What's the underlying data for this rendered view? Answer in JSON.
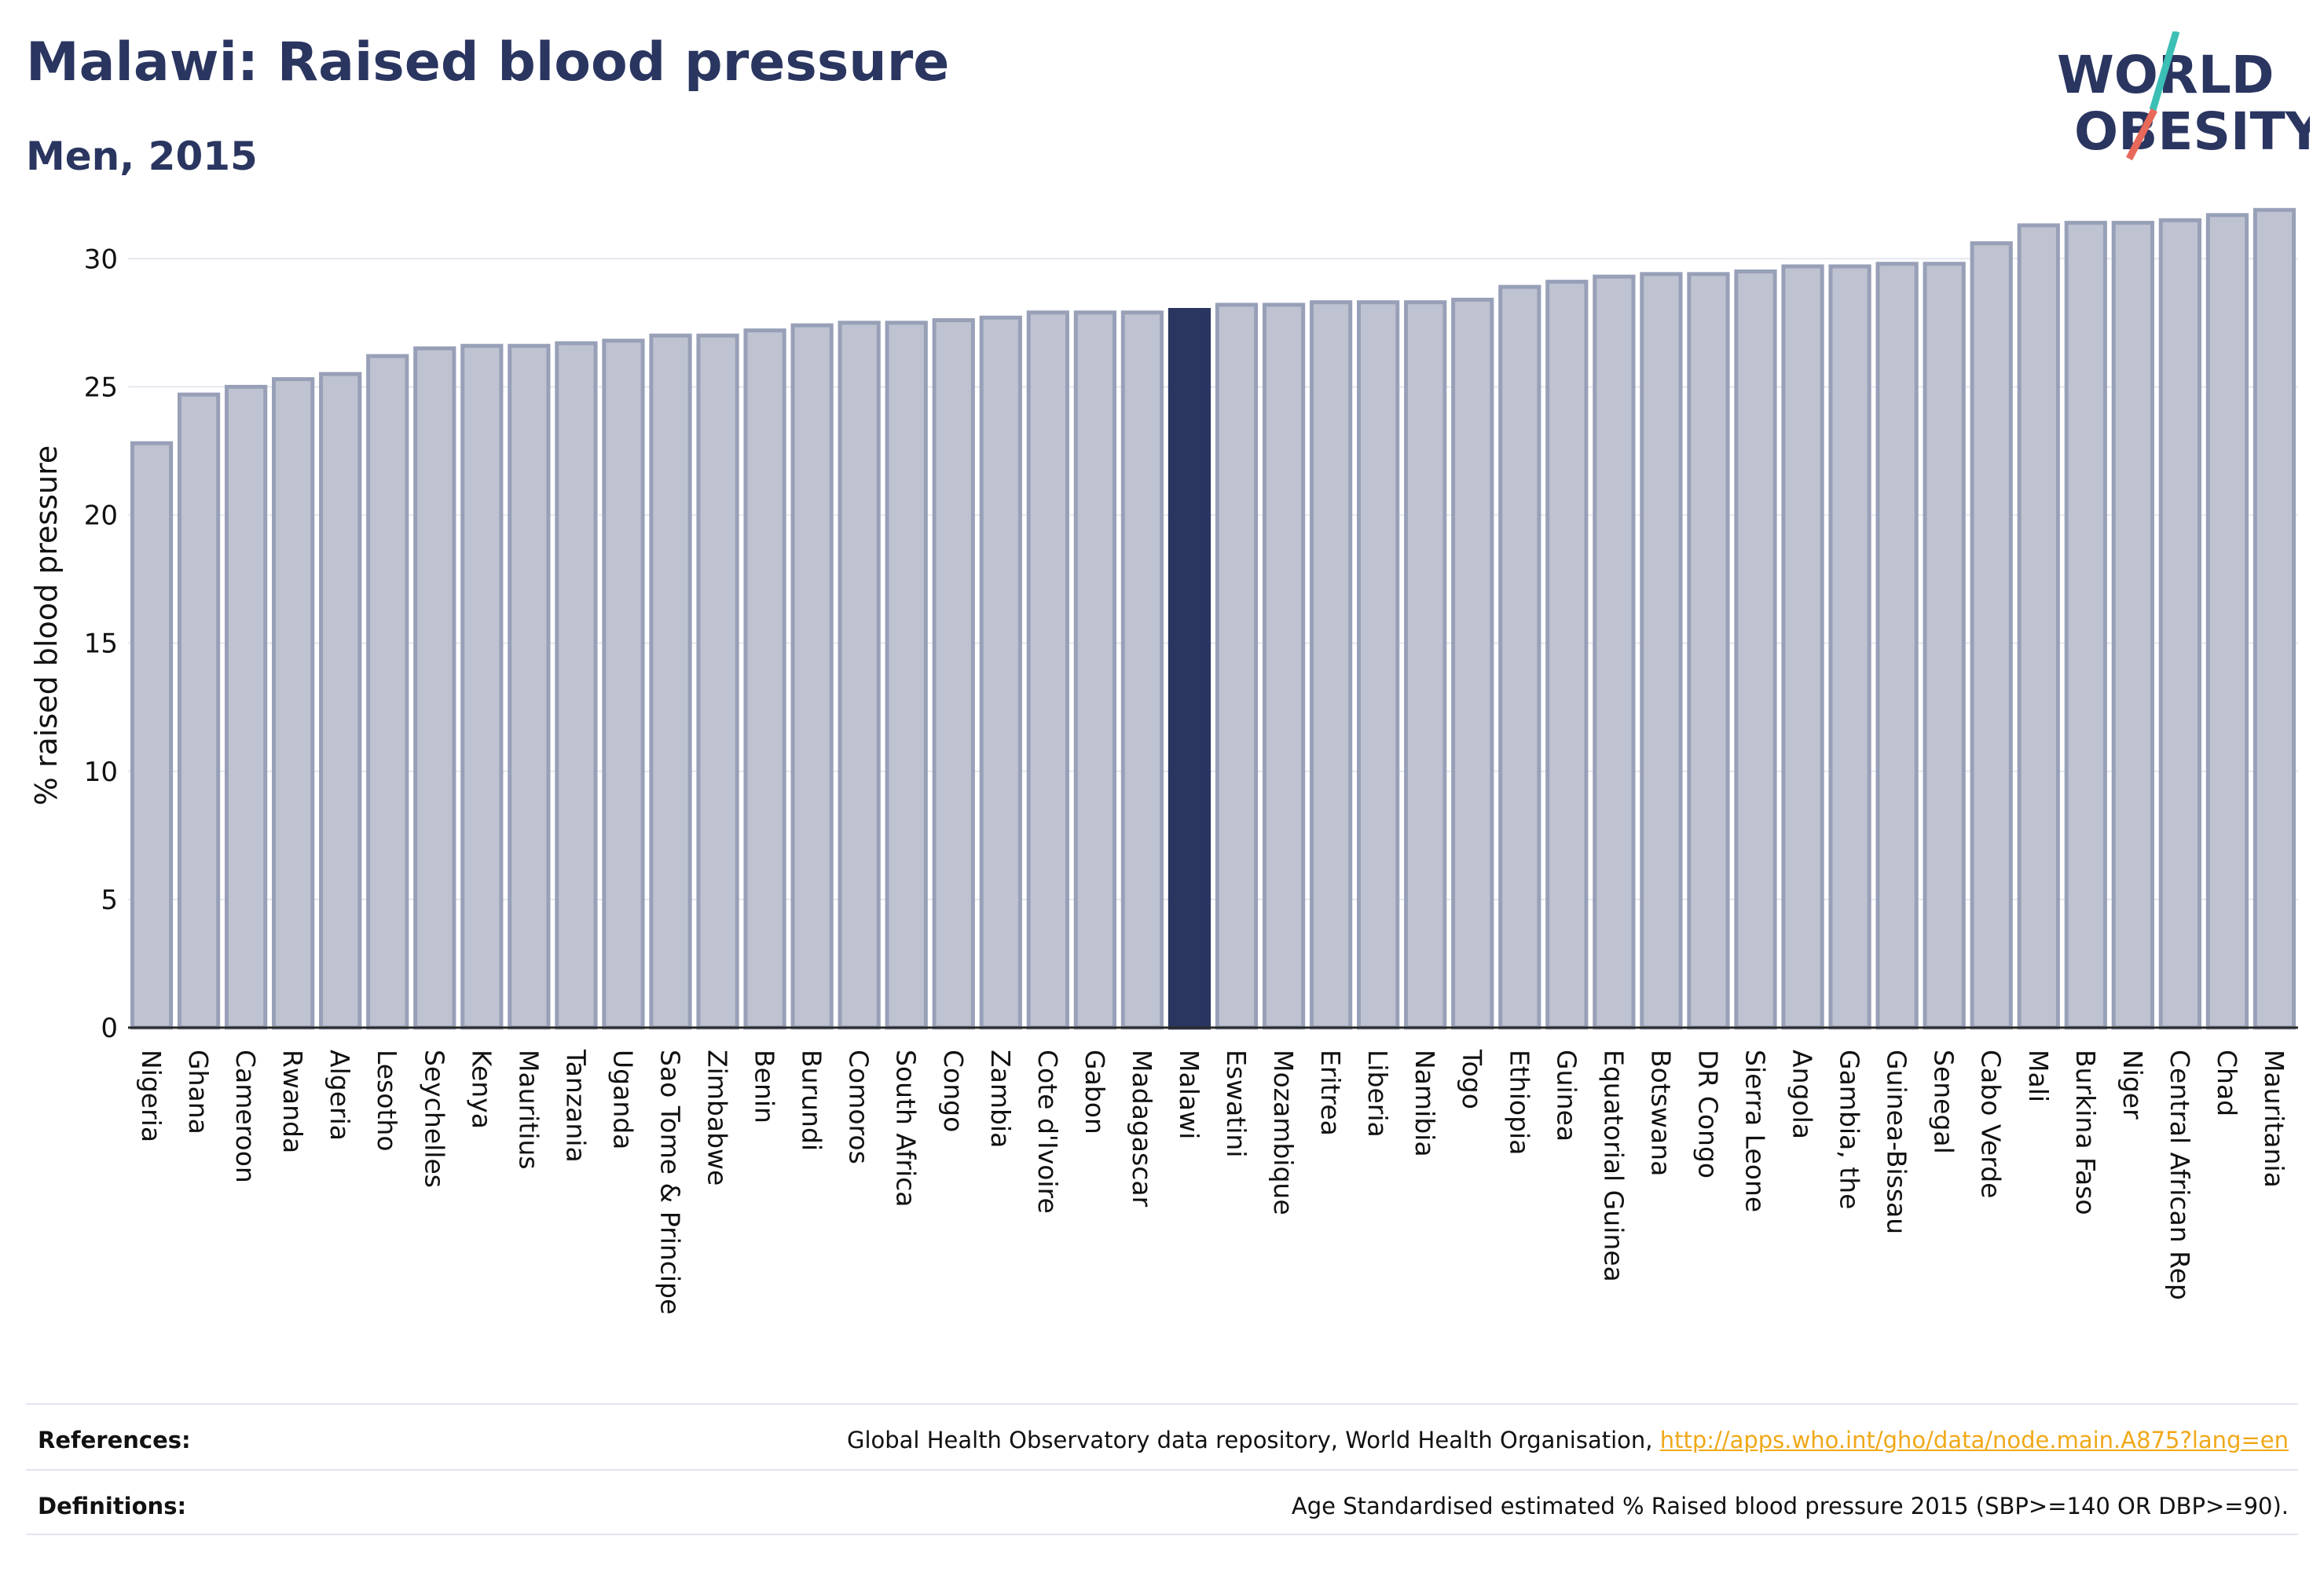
{
  "title": "Malawi: Raised blood pressure",
  "subtitle": "Men, 2015",
  "logo": {
    "line1": "WORLD",
    "line2": "OBESITY"
  },
  "colors": {
    "navy": "#2a3560",
    "bar": "#bfc3d1",
    "bar_stroke": "#98a0b8",
    "highlight": "#2a3560",
    "slash_teal": "#3cbfb5",
    "slash_red": "#e8685a",
    "link": "#f0a818"
  },
  "chart_data": {
    "type": "bar",
    "ylabel": "% raised blood pressure",
    "ylim": [
      0,
      32
    ],
    "yticks": [
      0,
      5,
      10,
      15,
      20,
      25,
      30
    ],
    "highlight": "Malawi",
    "categories": [
      "Nigeria",
      "Ghana",
      "Cameroon",
      "Rwanda",
      "Algeria",
      "Lesotho",
      "Seychelles",
      "Kenya",
      "Mauritius",
      "Tanzania",
      "Uganda",
      "Sao Tome & Principe",
      "Zimbabwe",
      "Benin",
      "Burundi",
      "Comoros",
      "South Africa",
      "Congo",
      "Zambia",
      "Cote d'Ivoire",
      "Gabon",
      "Madagascar",
      "Malawi",
      "Eswatini",
      "Mozambique",
      "Eritrea",
      "Liberia",
      "Namibia",
      "Togo",
      "Ethiopia",
      "Guinea",
      "Equatorial Guinea",
      "Botswana",
      "DR Congo",
      "Sierra Leone",
      "Angola",
      "Gambia, the",
      "Guinea-Bissau",
      "Senegal",
      "Cabo Verde",
      "Mali",
      "Burkina Faso",
      "Niger",
      "Central African Rep",
      "Chad",
      "Mauritania"
    ],
    "values": [
      22.8,
      24.7,
      25.0,
      25.3,
      25.5,
      26.2,
      26.5,
      26.6,
      26.6,
      26.7,
      26.8,
      27.0,
      27.0,
      27.2,
      27.4,
      27.5,
      27.5,
      27.6,
      27.7,
      27.9,
      27.9,
      27.9,
      28.0,
      28.2,
      28.2,
      28.3,
      28.3,
      28.3,
      28.4,
      28.9,
      29.1,
      29.3,
      29.4,
      29.4,
      29.5,
      29.7,
      29.7,
      29.8,
      29.8,
      30.6,
      31.3,
      31.4,
      31.4,
      31.5,
      31.7,
      31.9
    ]
  },
  "footer": {
    "references_label": "References:",
    "references_text": "Global Health Observatory data repository, World Health Organisation,",
    "references_link": "http://apps.who.int/gho/data/node.main.A875?lang=en",
    "definitions_label": "Definitions:",
    "definitions_text": "Age Standardised estimated % Raised blood pressure 2015 (SBP>=140 OR DBP>=90)."
  }
}
